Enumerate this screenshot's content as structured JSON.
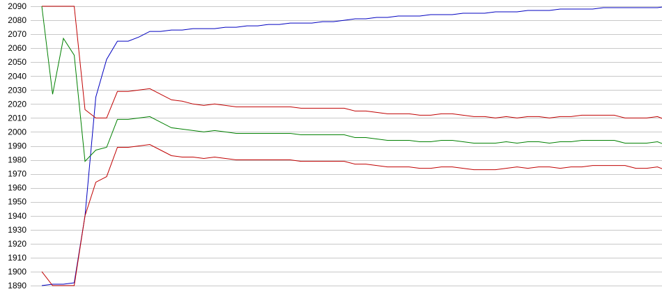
{
  "chart_data": {
    "type": "line",
    "title": "",
    "xlabel": "",
    "ylabel": "",
    "ylim": [
      1890,
      2090
    ],
    "grid": true,
    "legend": "none",
    "y_ticks": [
      1890,
      1900,
      1910,
      1920,
      1930,
      1940,
      1950,
      1960,
      1970,
      1980,
      1990,
      2000,
      2010,
      2020,
      2030,
      2040,
      2050,
      2060,
      2070,
      2080,
      2090
    ],
    "colors": {
      "upper": "#c00000",
      "middle": "#008000",
      "lower": "#c00000",
      "blue": "#0000c0",
      "grid": "#c8c8c8"
    },
    "x": [
      0,
      1,
      2,
      3,
      4,
      5,
      6,
      7,
      8,
      9,
      10,
      11,
      12,
      13,
      14,
      15,
      16,
      17,
      18,
      19,
      20,
      21,
      22,
      23,
      24,
      25,
      26,
      27,
      28,
      29,
      30,
      31,
      32,
      33,
      34,
      35,
      36,
      37,
      38,
      39,
      40,
      41,
      42,
      43,
      44,
      45,
      46,
      47,
      48,
      49,
      50,
      51,
      52,
      53,
      54,
      55,
      56,
      57,
      58
    ],
    "series": [
      {
        "color": "#0000c0",
        "values": [
          1890,
          1891,
          1891,
          1892,
          1940,
          2025,
          2052,
          2065,
          2065,
          2068,
          2072,
          2072,
          2073,
          2073,
          2074,
          2074,
          2074,
          2075,
          2075,
          2076,
          2076,
          2077,
          2077,
          2078,
          2078,
          2078,
          2079,
          2079,
          2080,
          2081,
          2081,
          2082,
          2082,
          2083,
          2083,
          2083,
          2084,
          2084,
          2084,
          2085,
          2085,
          2085,
          2086,
          2086,
          2086,
          2087,
          2087,
          2087,
          2088,
          2088,
          2088,
          2088,
          2089,
          2089,
          2089,
          2089,
          2089,
          2089,
          2090
        ]
      },
      {
        "color": "#c00000",
        "values": [
          2090,
          2090,
          2090,
          2090,
          2016,
          2010,
          2010,
          2029,
          2029,
          2030,
          2031,
          2027,
          2023,
          2022,
          2020,
          2019,
          2020,
          2019,
          2018,
          2018,
          2018,
          2018,
          2018,
          2018,
          2017,
          2017,
          2017,
          2017,
          2017,
          2015,
          2015,
          2014,
          2013,
          2013,
          2013,
          2012,
          2012,
          2013,
          2013,
          2012,
          2011,
          2011,
          2010,
          2011,
          2010,
          2011,
          2011,
          2010,
          2011,
          2011,
          2012,
          2012,
          2012,
          2012,
          2010,
          2010,
          2010,
          2011,
          2008
        ]
      },
      {
        "color": "#008000",
        "values": [
          2090,
          2027,
          2067,
          2055,
          1979,
          1987,
          1989,
          2009,
          2009,
          2010,
          2011,
          2007,
          2003,
          2002,
          2001,
          2000,
          2001,
          2000,
          1999,
          1999,
          1999,
          1999,
          1999,
          1999,
          1998,
          1998,
          1998,
          1998,
          1998,
          1996,
          1996,
          1995,
          1994,
          1994,
          1994,
          1993,
          1993,
          1994,
          1994,
          1993,
          1992,
          1992,
          1992,
          1993,
          1992,
          1993,
          1993,
          1992,
          1993,
          1993,
          1994,
          1994,
          1994,
          1994,
          1992,
          1992,
          1992,
          1993,
          1990
        ]
      },
      {
        "color": "#c00000",
        "values": [
          1900,
          1890,
          1890,
          1890,
          1940,
          1964,
          1968,
          1989,
          1989,
          1990,
          1991,
          1987,
          1983,
          1982,
          1982,
          1981,
          1982,
          1981,
          1980,
          1980,
          1980,
          1980,
          1980,
          1980,
          1979,
          1979,
          1979,
          1979,
          1979,
          1977,
          1977,
          1976,
          1975,
          1975,
          1975,
          1974,
          1974,
          1975,
          1975,
          1974,
          1973,
          1973,
          1973,
          1974,
          1975,
          1974,
          1975,
          1975,
          1974,
          1975,
          1975,
          1976,
          1976,
          1976,
          1976,
          1974,
          1974,
          1975,
          1972
        ]
      }
    ]
  }
}
